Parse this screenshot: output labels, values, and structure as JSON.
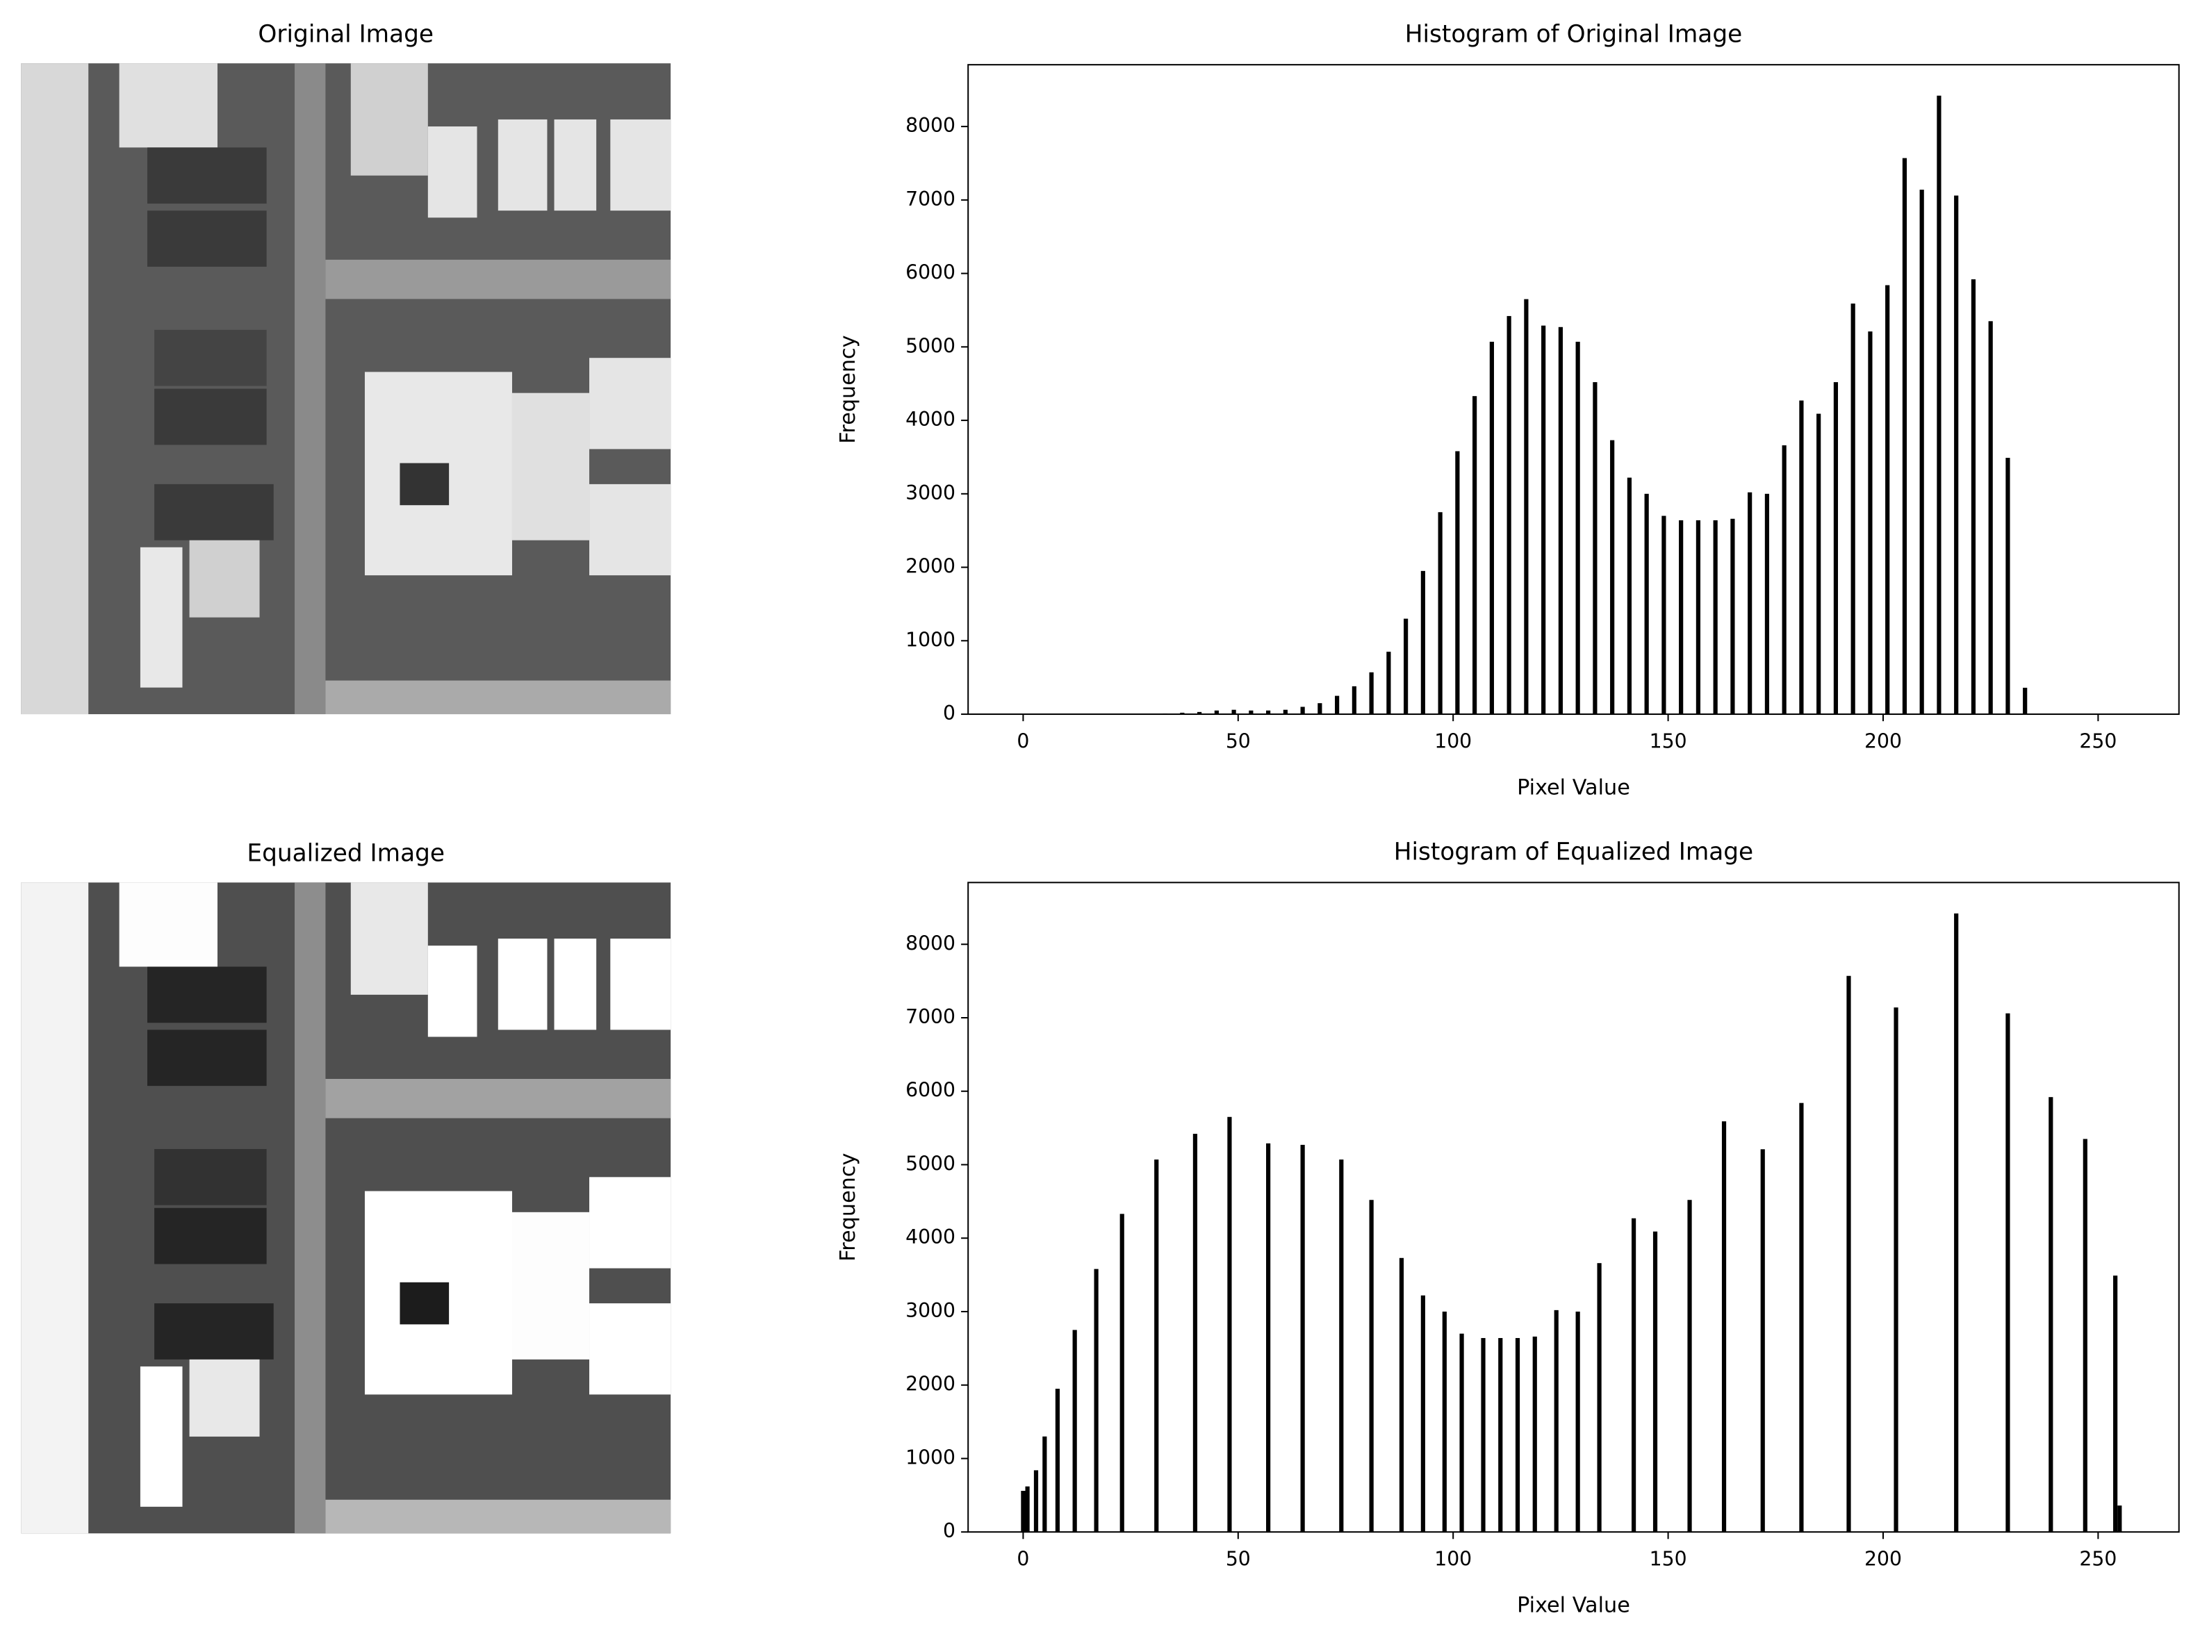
{
  "chart_data": [
    {
      "type": "image",
      "title": "Original Image"
    },
    {
      "type": "bar",
      "title": "Histogram of Original Image",
      "xlabel": "Pixel Value",
      "ylabel": "Frequency",
      "color": "#000000",
      "x": [
        33,
        37,
        41,
        45,
        49,
        53,
        57,
        61,
        65,
        69,
        73,
        77,
        81,
        85,
        89,
        93,
        97,
        101,
        105,
        109,
        113,
        117,
        121,
        125,
        129,
        133,
        137,
        141,
        145,
        149,
        153,
        157,
        161,
        165,
        169,
        173,
        177,
        181,
        185,
        189,
        193,
        197,
        201,
        205,
        209,
        213,
        217,
        221,
        225,
        229,
        233
      ],
      "values": [
        10,
        20,
        30,
        50,
        60,
        50,
        50,
        60,
        100,
        150,
        250,
        380,
        570,
        850,
        1300,
        1950,
        2750,
        3580,
        4330,
        5070,
        5420,
        5650,
        5290,
        5270,
        5070,
        4520,
        3730,
        3220,
        3000,
        2700,
        2640,
        2640,
        2640,
        2660,
        3020,
        3000,
        3660,
        4270,
        4090,
        4520,
        5590,
        5210,
        5840,
        7570,
        7140,
        8420,
        7060,
        5920,
        5350,
        3490,
        360
      ],
      "xlim": [
        -12.8,
        268.8
      ],
      "ylim": [
        0,
        8841
      ],
      "xticks": [
        0,
        50,
        100,
        150,
        200,
        250
      ],
      "yticks": [
        0,
        1000,
        2000,
        3000,
        4000,
        5000,
        6000,
        7000,
        8000
      ]
    },
    {
      "type": "image",
      "title": "Equalized Image"
    },
    {
      "type": "bar",
      "title": "Histogram of Equalized Image",
      "xlabel": "Pixel Value",
      "ylabel": "Frequency",
      "color": "#000000",
      "x": [
        0,
        1,
        3,
        5,
        8,
        12,
        17,
        23,
        31,
        40,
        48,
        57,
        65,
        74,
        81,
        88,
        93,
        98,
        102,
        107,
        111,
        115,
        119,
        124,
        129,
        134,
        142,
        147,
        155,
        163,
        172,
        181,
        192,
        203,
        217,
        229,
        239,
        247,
        254,
        255
      ],
      "values": [
        560,
        620,
        840,
        1300,
        1950,
        2750,
        3580,
        4330,
        5070,
        5420,
        5650,
        5290,
        5270,
        5070,
        4520,
        3730,
        3220,
        3000,
        2700,
        2640,
        2640,
        2640,
        2660,
        3020,
        3000,
        3660,
        4270,
        4090,
        4520,
        5590,
        5210,
        5840,
        7570,
        7140,
        8420,
        7060,
        5920,
        5350,
        3490,
        360
      ],
      "xlim": [
        -12.8,
        268.8
      ],
      "ylim": [
        0,
        8841
      ],
      "xticks": [
        0,
        50,
        100,
        150,
        200,
        250
      ],
      "yticks": [
        0,
        1000,
        2000,
        3000,
        4000,
        5000,
        6000,
        7000,
        8000
      ]
    }
  ]
}
